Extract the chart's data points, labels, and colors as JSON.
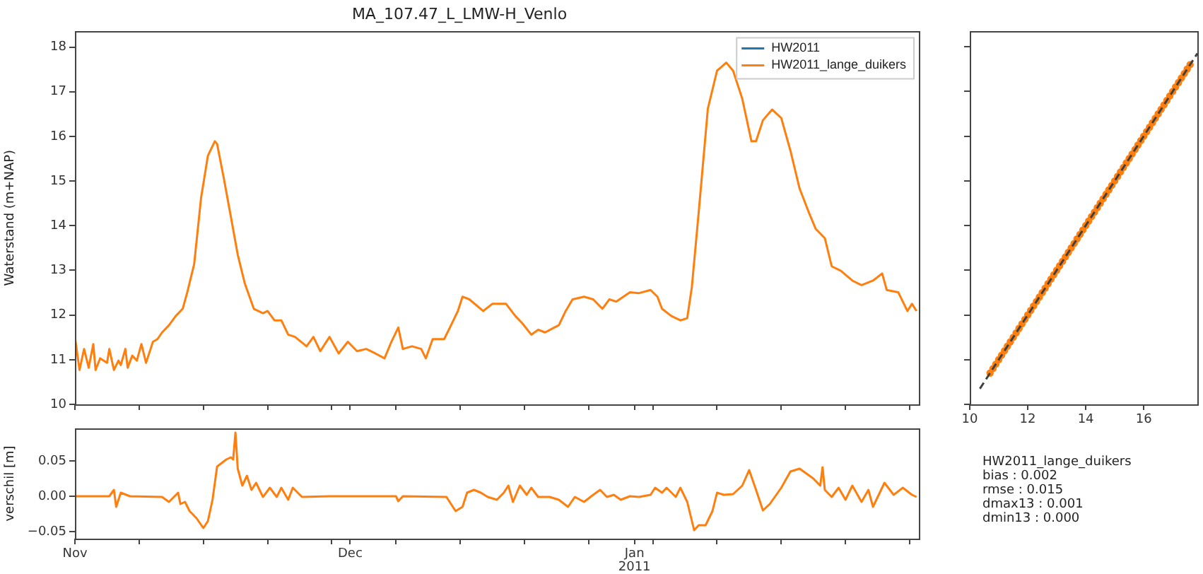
{
  "chart_data": [
    {
      "type": "line",
      "title": "MA_107.47_L_LMW-H_Venlo",
      "ylabel": "Waterstand (m+NAP)",
      "legend": "top right",
      "tick_labels": "y",
      "xlim": [
        "2010-11-01",
        "2011-02-01"
      ],
      "ylim": [
        10,
        18.35
      ],
      "yticks": [
        10,
        11,
        12,
        13,
        14,
        15,
        16,
        17,
        18
      ],
      "xticks": [
        {
          "value": "2010-11-01",
          "label": null
        },
        {
          "value": "2010-11-08",
          "label": null
        },
        {
          "value": "2010-11-15",
          "label": null
        },
        {
          "value": "2010-11-22",
          "label": null
        },
        {
          "value": "2010-11-29",
          "label": null
        },
        {
          "value": "2010-12-01",
          "label": null
        },
        {
          "value": "2010-12-06",
          "label": null
        },
        {
          "value": "2010-12-13",
          "label": null
        },
        {
          "value": "2010-12-20",
          "label": null
        },
        {
          "value": "2010-12-27",
          "label": null
        },
        {
          "value": "2011-01-01",
          "label": null
        },
        {
          "value": "2011-01-03",
          "label": null
        },
        {
          "value": "2011-01-10",
          "label": null
        },
        {
          "value": "2011-01-17",
          "label": null
        },
        {
          "value": "2011-01-24",
          "label": null
        },
        {
          "value": "2011-01-31",
          "label": null
        }
      ],
      "x": [
        "2010-11-01",
        "2010-11-01T12:00",
        "2010-11-02",
        "2010-11-02T12:00",
        "2010-11-03",
        "2010-11-03T06:00",
        "2010-11-03T18:00",
        "2010-11-04T12:00",
        "2010-11-04T18:00",
        "2010-11-05T06:00",
        "2010-11-05T18:00",
        "2010-11-06",
        "2010-11-06T12:00",
        "2010-11-06T18:00",
        "2010-11-07T06:00",
        "2010-11-07T18:00",
        "2010-11-08T06:00",
        "2010-11-08T18:00",
        "2010-11-09T06:00",
        "2010-11-09T12:00",
        "2010-11-10",
        "2010-11-10T12:00",
        "2010-11-11T06:00",
        "2010-11-12",
        "2010-11-12T18:00",
        "2010-11-13T06:00",
        "2010-11-14",
        "2010-11-14T18:00",
        "2010-11-15T12:00",
        "2010-11-16T06:00",
        "2010-11-16T12:00",
        "2010-11-17T06:00",
        "2010-11-18",
        "2010-11-18T18:00",
        "2010-11-19T12:00",
        "2010-11-20T12:00",
        "2010-11-21T12:00",
        "2010-11-22",
        "2010-11-22T18:00",
        "2010-11-23T12:00",
        "2010-11-24T06:00",
        "2010-11-25",
        "2010-11-26T06:00",
        "2010-11-27",
        "2010-11-27T18:00",
        "2010-11-28T18:00",
        "2010-11-29T18:00",
        "2010-11-30T18:00",
        "2010-12-01T18:00",
        "2010-12-02T18:00",
        "2010-12-03T18:00",
        "2010-12-04T18:00",
        "2010-12-05T12:00",
        "2010-12-06T06:00",
        "2010-12-06T18:00",
        "2010-12-07T18:00",
        "2010-12-08T18:00",
        "2010-12-09T06:00",
        "2010-12-10",
        "2010-12-11T06:00",
        "2010-12-12",
        "2010-12-12T18:00",
        "2010-12-13T06:00",
        "2010-12-14",
        "2010-12-15T12:00",
        "2010-12-16T12:00",
        "2010-12-18",
        "2010-12-19",
        "2010-12-19T18:00",
        "2010-12-20T18:00",
        "2010-12-21T12:00",
        "2010-12-22T06:00",
        "2010-12-23T06:00",
        "2010-12-23T18:00",
        "2010-12-24T12:00",
        "2010-12-25T06:00",
        "2010-12-26T12:00",
        "2010-12-27T12:00",
        "2010-12-28T12:00",
        "2010-12-29T06:00",
        "2010-12-30",
        "2010-12-31T12:00",
        "2011-01-01T12:00",
        "2011-01-02T18:00",
        "2011-01-03T12:00",
        "2011-01-04",
        "2011-01-05",
        "2011-01-06",
        "2011-01-06T18:00",
        "2011-01-07T06:00",
        "2011-01-08",
        "2011-01-09",
        "2011-01-10",
        "2011-01-11",
        "2011-01-11T18:00",
        "2011-01-12T18:00",
        "2011-01-13T18:00",
        "2011-01-14T06:00",
        "2011-01-15",
        "2011-01-16",
        "2011-01-17",
        "2011-01-18",
        "2011-01-19",
        "2011-01-20",
        "2011-01-20T18:00",
        "2011-01-21T18:00",
        "2011-01-22T12:00",
        "2011-01-23T12:00",
        "2011-01-24T18:00",
        "2011-01-25T18:00",
        "2011-01-27",
        "2011-01-28",
        "2011-01-28T12:00",
        "2011-01-29T18:00",
        "2011-01-30T18:00",
        "2011-01-31T06:00",
        "2011-01-31T18:00"
      ],
      "series": [
        {
          "name": "HW2011",
          "color": "#1f77b4",
          "values": [
            null,
            null,
            null,
            null,
            null,
            null,
            null,
            null,
            null,
            null,
            null,
            null,
            null,
            null,
            null,
            null,
            null,
            null,
            null,
            null,
            null,
            null,
            null,
            null,
            null,
            null,
            null,
            null,
            null,
            null,
            null,
            null,
            null,
            null,
            null,
            null,
            null,
            null,
            null,
            null,
            null,
            null,
            null,
            null,
            null,
            null,
            null,
            null,
            null,
            null,
            null,
            null,
            null,
            null,
            null,
            null,
            null,
            null,
            null,
            null,
            null,
            null,
            null,
            null,
            null,
            null,
            null,
            null,
            null,
            null,
            null,
            null,
            null,
            null,
            null,
            null,
            null,
            null,
            null,
            null,
            null,
            null,
            null,
            null,
            null,
            null,
            null,
            null,
            null,
            null,
            null,
            null,
            null,
            null,
            null,
            null,
            null,
            null,
            null,
            null,
            null,
            null,
            null,
            null,
            null,
            null,
            null,
            null,
            null,
            null,
            null,
            null,
            null,
            null,
            null,
            null,
            null
          ]
        },
        {
          "name": "HW2011_lange_duikers",
          "color": "#ff7f0e",
          "values": [
            11.51,
            10.77,
            11.24,
            10.82,
            11.35,
            10.77,
            11.03,
            10.93,
            11.24,
            10.77,
            10.98,
            10.88,
            11.24,
            10.82,
            11.09,
            10.98,
            11.35,
            10.93,
            11.24,
            11.4,
            11.46,
            11.61,
            11.77,
            11.98,
            12.14,
            12.51,
            13.14,
            14.62,
            15.57,
            15.89,
            15.83,
            15.04,
            14.2,
            13.35,
            12.72,
            12.14,
            12.04,
            12.09,
            11.88,
            11.88,
            11.56,
            11.51,
            11.3,
            11.51,
            11.19,
            11.51,
            11.14,
            11.4,
            11.19,
            11.24,
            11.14,
            11.03,
            11.4,
            11.72,
            11.24,
            11.3,
            11.24,
            11.03,
            11.46,
            11.46,
            11.77,
            12.09,
            12.41,
            12.35,
            12.09,
            12.25,
            12.25,
            11.98,
            11.82,
            11.56,
            11.67,
            11.61,
            11.72,
            11.77,
            12.09,
            12.35,
            12.41,
            12.35,
            12.14,
            12.35,
            12.3,
            12.51,
            12.49,
            12.56,
            12.41,
            12.14,
            11.98,
            11.88,
            11.93,
            12.62,
            14.3,
            16.62,
            17.47,
            17.65,
            17.47,
            16.84,
            15.89,
            15.89,
            16.36,
            16.6,
            16.41,
            15.68,
            14.83,
            14.3,
            13.93,
            13.72,
            13.09,
            12.99,
            12.77,
            12.67,
            12.77,
            12.93,
            12.56,
            12.51,
            12.09,
            12.25,
            12.09
          ]
        }
      ]
    },
    {
      "type": "line",
      "ylabel": "verschil [m]",
      "xlim": [
        "2010-11-01",
        "2011-02-01"
      ],
      "ylim": [
        -0.06,
        0.096
      ],
      "yticks": [
        {
          "value": -0.05,
          "label": "−0.05"
        },
        {
          "value": 0,
          "label": "0.00"
        },
        0.05
      ],
      "xticks": [
        {
          "value": "2010-11-01",
          "label": "Nov"
        },
        {
          "value": "2010-11-08",
          "label": null
        },
        {
          "value": "2010-11-15",
          "label": null
        },
        {
          "value": "2010-11-22",
          "label": null
        },
        {
          "value": "2010-11-29",
          "label": null
        },
        {
          "value": "2010-12-01",
          "label": "Dec"
        },
        {
          "value": "2010-12-06",
          "label": null
        },
        {
          "value": "2010-12-13",
          "label": null
        },
        {
          "value": "2010-12-20",
          "label": null
        },
        {
          "value": "2010-12-27",
          "label": null
        },
        {
          "value": "2011-01-01",
          "label": "Jan\n2011"
        },
        {
          "value": "2011-01-03",
          "label": null
        },
        {
          "value": "2011-01-10",
          "label": null
        },
        {
          "value": "2011-01-17",
          "label": null
        },
        {
          "value": "2011-01-24",
          "label": null
        },
        {
          "value": "2011-01-31",
          "label": null
        }
      ],
      "x": [
        "2010-11-01",
        "2010-11-04T18:00",
        "2010-11-05T06:00",
        "2010-11-05T12:00",
        "2010-11-06",
        "2010-11-07",
        "2010-11-10T12:00",
        "2010-11-11T06:00",
        "2010-11-12T06:00",
        "2010-11-12T12:00",
        "2010-11-13",
        "2010-11-13T12:00",
        "2010-11-14T06:00",
        "2010-11-15",
        "2010-11-15T12:00",
        "2010-11-16",
        "2010-11-16T12:00",
        "2010-11-17T12:00",
        "2010-11-18",
        "2010-11-18T06:00",
        "2010-11-18T12:00",
        "2010-11-18T18:00",
        "2010-11-19T06:00",
        "2010-11-19T18:00",
        "2010-11-20T06:00",
        "2010-11-20T18:00",
        "2010-11-21T12:00",
        "2010-11-22T06:00",
        "2010-11-23",
        "2010-11-23T12:00",
        "2010-11-24T06:00",
        "2010-11-24T18:00",
        "2010-11-25T18:00",
        "2010-11-28T18:00",
        "2010-12-06",
        "2010-12-06T06:00",
        "2010-12-06T18:00",
        "2010-12-11T12:00",
        "2010-12-12T12:00",
        "2010-12-13T06:00",
        "2010-12-13T18:00",
        "2010-12-14T12:00",
        "2010-12-15T06:00",
        "2010-12-16",
        "2010-12-17",
        "2010-12-17T18:00",
        "2010-12-18T06:00",
        "2010-12-18T18:00",
        "2010-12-19T12:00",
        "2010-12-20T06:00",
        "2010-12-20T18:00",
        "2010-12-21T12:00",
        "2010-12-22T18:00",
        "2010-12-23T18:00",
        "2010-12-24T18:00",
        "2010-12-25T12:00",
        "2010-12-26T12:00",
        "2010-12-27T12:00",
        "2010-12-28T06:00",
        "2010-12-29",
        "2010-12-29T18:00",
        "2010-12-30T12:00",
        "2010-12-31T12:00",
        "2011-01-01T12:00",
        "2011-01-02T18:00",
        "2011-01-03T06:00",
        "2011-01-04",
        "2011-01-04T12:00",
        "2011-01-05T12:00",
        "2011-01-06",
        "2011-01-06T18:00",
        "2011-01-07T12:00",
        "2011-01-08",
        "2011-01-08T18:00",
        "2011-01-09T12:00",
        "2011-01-10",
        "2011-01-10T18:00",
        "2011-01-11T18:00",
        "2011-01-12T18:00",
        "2011-01-13T12:00",
        "2011-01-14T06:00",
        "2011-01-15",
        "2011-01-15T18:00",
        "2011-01-17",
        "2011-01-18",
        "2011-01-19",
        "2011-01-19T18:00",
        "2011-01-20T12:00",
        "2011-01-21T06:00",
        "2011-01-21T12:00",
        "2011-01-21T18:00",
        "2011-01-22T12:00",
        "2011-01-23T06:00",
        "2011-01-24",
        "2011-01-24T18:00",
        "2011-01-25T18:00",
        "2011-01-26T12:00",
        "2011-01-27",
        "2011-01-28T06:00",
        "2011-01-29T06:00",
        "2011-01-30T06:00",
        "2011-01-31T06:00",
        "2011-01-31T18:00"
      ],
      "series": [
        {
          "color": "#ff7f0e",
          "values": [
            0,
            0,
            0.009,
            -0.015,
            0.005,
            0,
            -0.001,
            -0.008,
            0.005,
            -0.011,
            -0.008,
            -0.021,
            -0.031,
            -0.045,
            -0.035,
            -0.005,
            0.042,
            0.052,
            0.055,
            0.052,
            0.09,
            0.039,
            0.015,
            0.029,
            0.009,
            0.019,
            -0.001,
            0.012,
            -0.001,
            0.012,
            -0.005,
            0.012,
            -0.001,
            0,
            0,
            -0.007,
            0,
            -0.001,
            -0.021,
            -0.015,
            0.005,
            0.009,
            0.005,
            -0.001,
            -0.005,
            0.005,
            0.015,
            -0.008,
            0.015,
            0.002,
            0.012,
            -0.001,
            -0.001,
            -0.005,
            -0.015,
            -0.001,
            -0.008,
            0.002,
            0.009,
            -0.001,
            0.002,
            -0.005,
            0,
            -0.001,
            0.002,
            0.012,
            0.005,
            0.012,
            -0.001,
            0.012,
            -0.008,
            -0.048,
            -0.041,
            -0.041,
            -0.021,
            0.005,
            0.002,
            0.003,
            0.015,
            0.037,
            0.009,
            -0.02,
            -0.011,
            0.012,
            0.035,
            0.039,
            0.032,
            0.025,
            0.015,
            0.041,
            0.009,
            -0.001,
            0.012,
            -0.005,
            0.015,
            -0.008,
            0.009,
            -0.015,
            0.019,
            0.002,
            0.012,
            0.002,
            -0.001
          ]
        }
      ]
    },
    {
      "type": "scatter",
      "marker": "circle",
      "tick_labels": "x",
      "xlim": [
        10,
        17.85
      ],
      "ylim": [
        10,
        18.35
      ],
      "xticks": [
        10,
        12,
        14,
        16
      ],
      "yticks": [
        10,
        11,
        12,
        13,
        14,
        15,
        16,
        17,
        18
      ],
      "series": [
        {
          "color": "#ff7f0e",
          "x": [
            10.7,
            10.8,
            10.9,
            11,
            11.1,
            11.2,
            11.3,
            11.4,
            11.5,
            11.6,
            11.7,
            11.8,
            11.9,
            12,
            12.1,
            12.2,
            12.3,
            12.4,
            12.5,
            12.6,
            12.7,
            12.8,
            12.9,
            13,
            13.1,
            13.2,
            13.3,
            13.4,
            13.5,
            13.6,
            13.7,
            13.8,
            13.9,
            14,
            14.1,
            14.2,
            14.3,
            14.4,
            14.5,
            14.6,
            14.7,
            14.8,
            14.9,
            15,
            15.1,
            15.2,
            15.3,
            15.4,
            15.5,
            15.6,
            15.7,
            15.8,
            15.9,
            16,
            16.1,
            16.2,
            16.3,
            16.4,
            16.5,
            16.6,
            16.7,
            16.8,
            16.9,
            17,
            17.1,
            17.2,
            17.3,
            17.4,
            17.5,
            17.6
          ],
          "values": [
            10.7,
            10.8,
            10.9,
            11,
            11.1,
            11.2,
            11.3,
            11.4,
            11.5,
            11.6,
            11.7,
            11.8,
            11.9,
            12,
            12.1,
            12.2,
            12.3,
            12.4,
            12.5,
            12.6,
            12.7,
            12.8,
            12.9,
            13,
            13.1,
            13.2,
            13.3,
            13.4,
            13.5,
            13.6,
            13.7,
            13.8,
            13.9,
            14,
            14.1,
            14.2,
            14.3,
            14.4,
            14.5,
            14.6,
            14.7,
            14.8,
            14.9,
            15,
            15.1,
            15.2,
            15.3,
            15.4,
            15.5,
            15.6,
            15.7,
            15.8,
            15.9,
            16,
            16.1,
            16.2,
            16.3,
            16.4,
            16.5,
            16.6,
            16.7,
            16.8,
            16.9,
            17,
            17.1,
            17.2,
            17.3,
            17.4,
            17.5,
            17.6
          ]
        },
        {
          "type": "line",
          "color": "#404040",
          "line_style": "dashed",
          "marker": "none",
          "x": [
            10.35,
            17.85
          ],
          "values": [
            10.35,
            17.85
          ]
        }
      ]
    },
    {
      "type": "other",
      "annotations": [
        "HW2011_lange_duikers",
        "bias : 0.002",
        "rmse : 0.015",
        "dmax13 : 0.001",
        "dmin13 : 0.000"
      ]
    }
  ]
}
